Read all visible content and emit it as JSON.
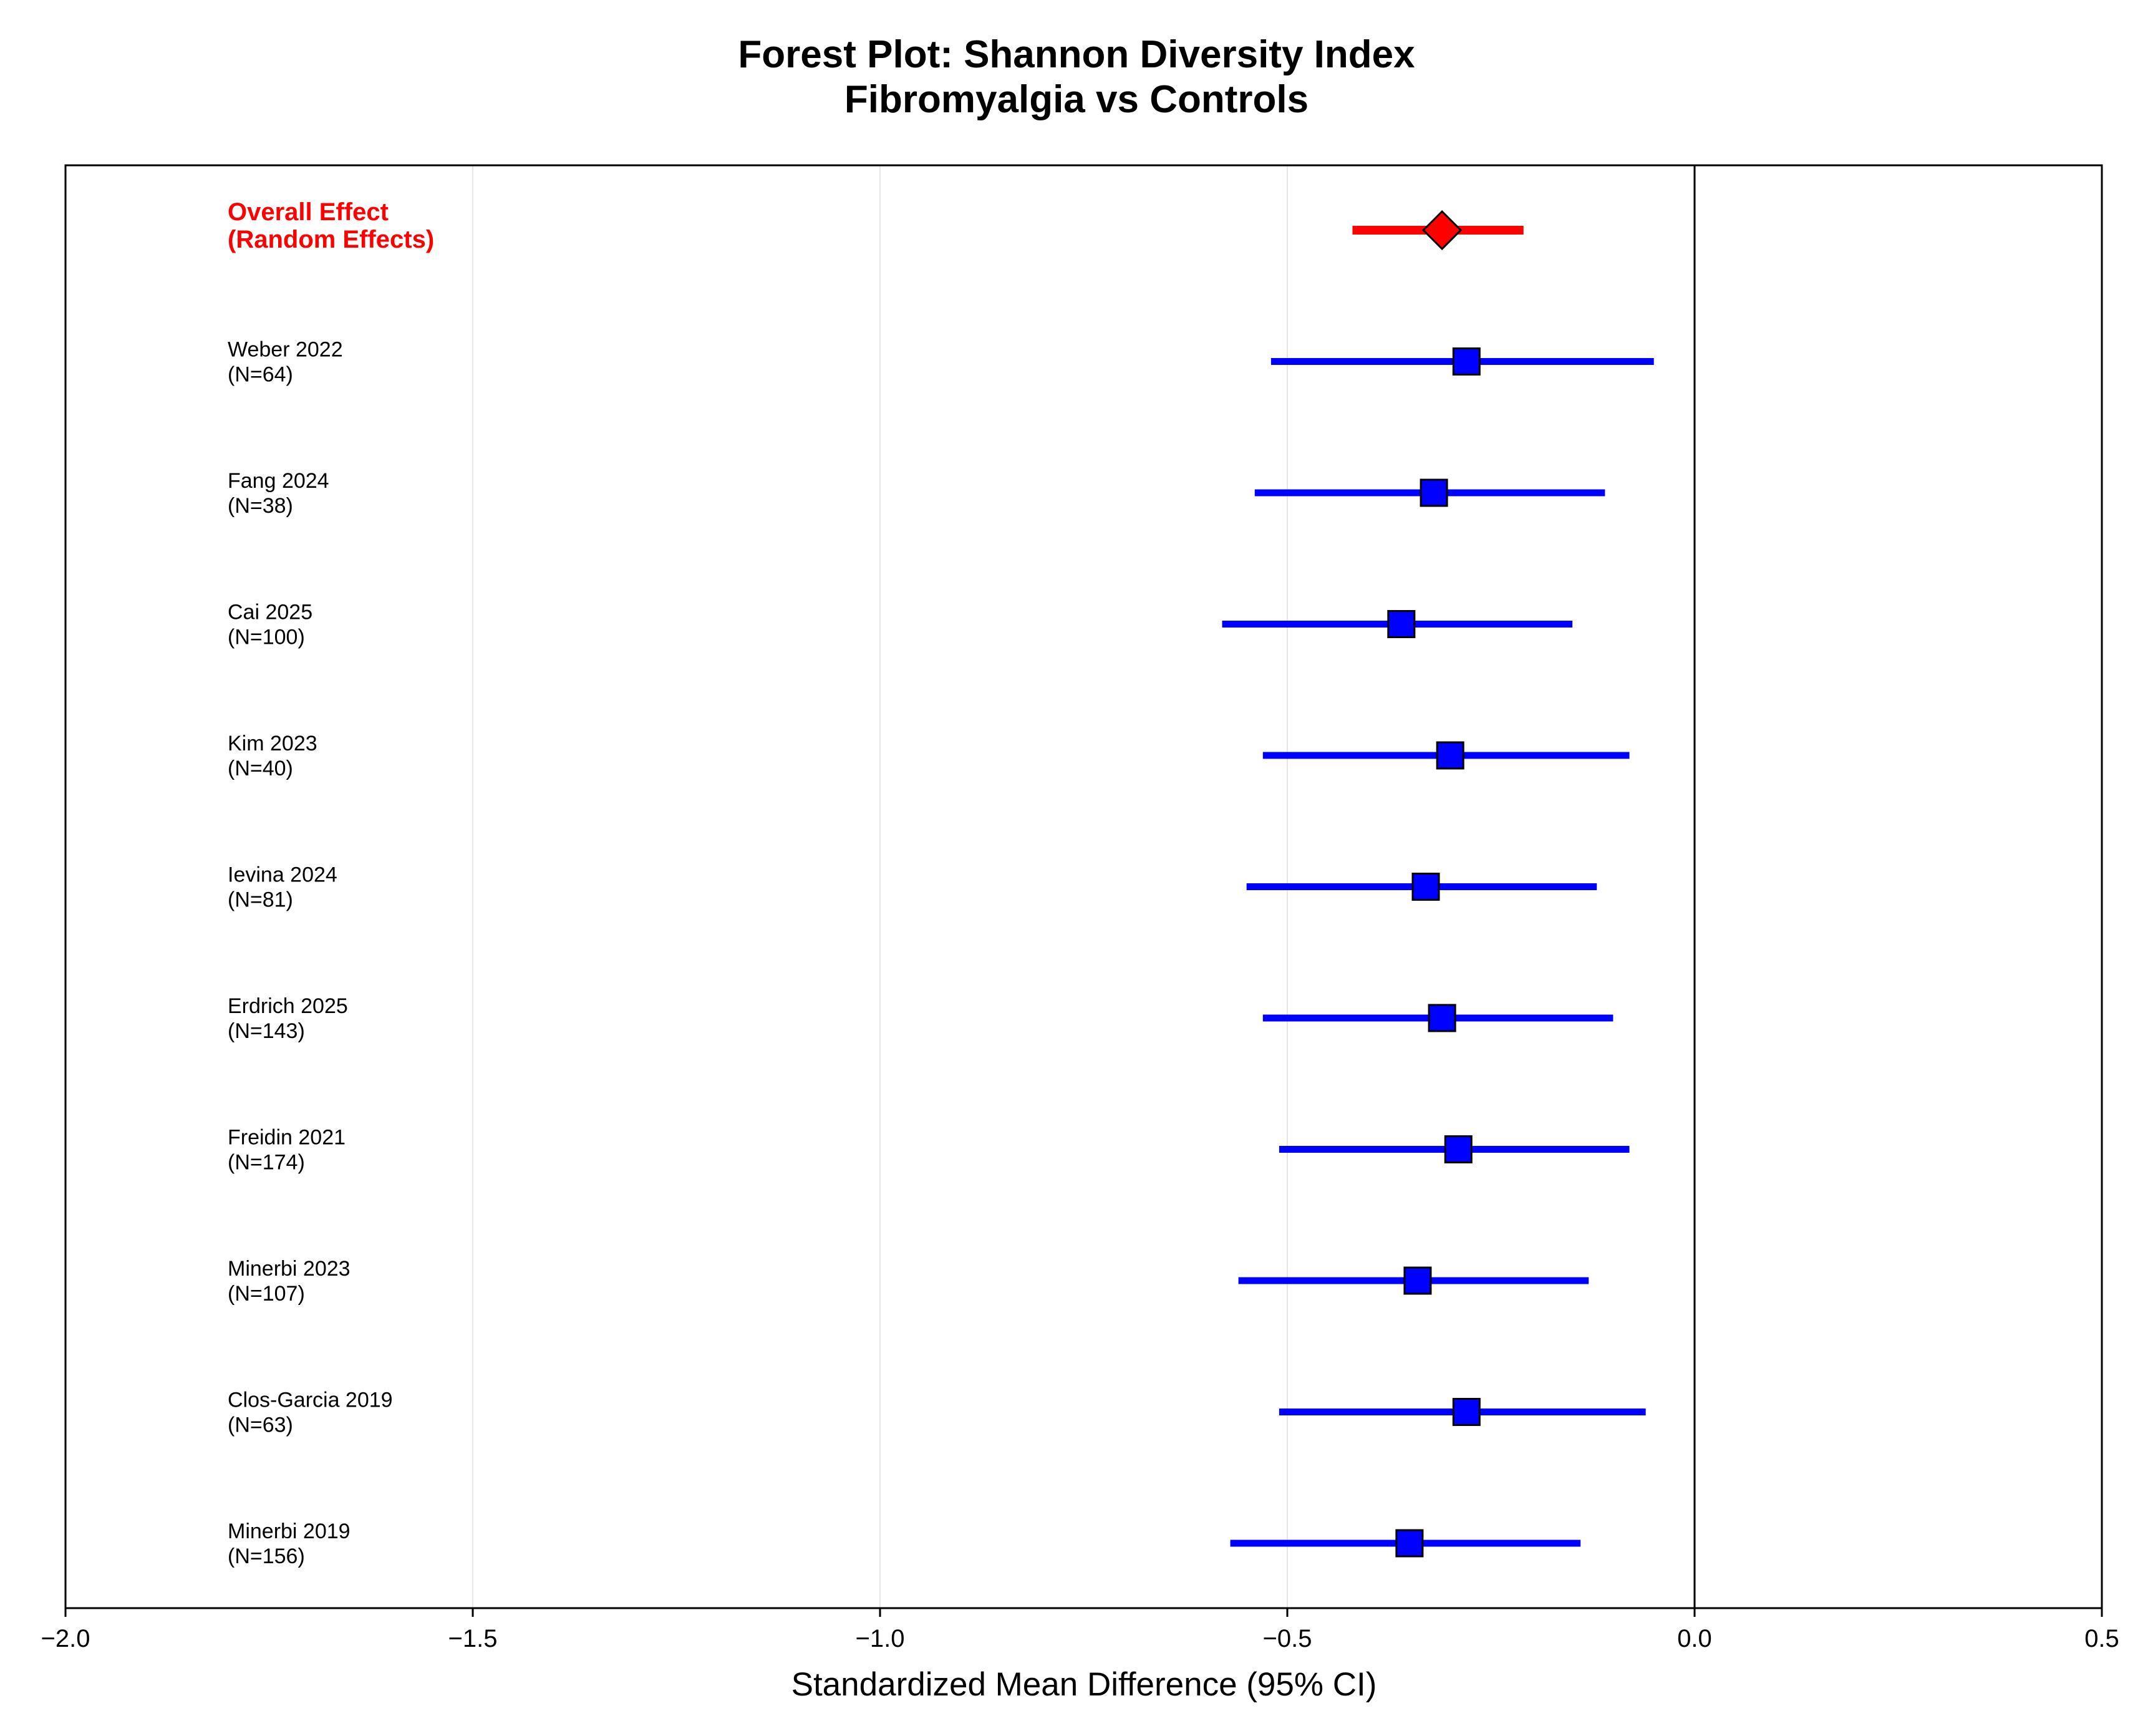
{
  "chart_data": {
    "type": "forest",
    "title_line1": "Forest Plot: Shannon Diversity Index",
    "title_line2": "Fibromyalgia vs Controls",
    "xlabel": "Standardized Mean Difference (95% CI)",
    "xlim": [
      -2.0,
      0.5
    ],
    "xticks": [
      -2.0,
      -1.5,
      -1.0,
      -0.5,
      0.0,
      0.5
    ],
    "xtick_labels": [
      "−2.0",
      "−1.5",
      "−1.0",
      "−0.5",
      "0.0",
      "0.5"
    ],
    "grid": "vertical gridlines",
    "reference_line": 0.0,
    "overall": {
      "label_line1": "Overall Effect",
      "label_line2": "(Random Effects)",
      "estimate": -0.31,
      "ci_low": -0.42,
      "ci_high": -0.21,
      "color": "#ff0000"
    },
    "studies": [
      {
        "name": "Weber 2022",
        "n_label": "(N=64)",
        "estimate": -0.28,
        "ci_low": -0.52,
        "ci_high": -0.05
      },
      {
        "name": "Fang 2024",
        "n_label": "(N=38)",
        "estimate": -0.32,
        "ci_low": -0.54,
        "ci_high": -0.11
      },
      {
        "name": "Cai 2025",
        "n_label": "(N=100)",
        "estimate": -0.36,
        "ci_low": -0.58,
        "ci_high": -0.15
      },
      {
        "name": "Kim 2023",
        "n_label": "(N=40)",
        "estimate": -0.3,
        "ci_low": -0.53,
        "ci_high": -0.08
      },
      {
        "name": "Ievina 2024",
        "n_label": "(N=81)",
        "estimate": -0.33,
        "ci_low": -0.55,
        "ci_high": -0.12
      },
      {
        "name": "Erdrich 2025",
        "n_label": "(N=143)",
        "estimate": -0.31,
        "ci_low": -0.53,
        "ci_high": -0.1
      },
      {
        "name": "Freidin 2021",
        "n_label": "(N=174)",
        "estimate": -0.29,
        "ci_low": -0.51,
        "ci_high": -0.08
      },
      {
        "name": "Minerbi 2023",
        "n_label": "(N=107)",
        "estimate": -0.34,
        "ci_low": -0.56,
        "ci_high": -0.13
      },
      {
        "name": "Clos-Garcia 2019",
        "n_label": "(N=63)",
        "estimate": -0.28,
        "ci_low": -0.51,
        "ci_high": -0.06
      },
      {
        "name": "Minerbi 2019",
        "n_label": "(N=156)",
        "estimate": -0.35,
        "ci_low": -0.57,
        "ci_high": -0.14
      }
    ],
    "study_color": "#0000ff"
  }
}
